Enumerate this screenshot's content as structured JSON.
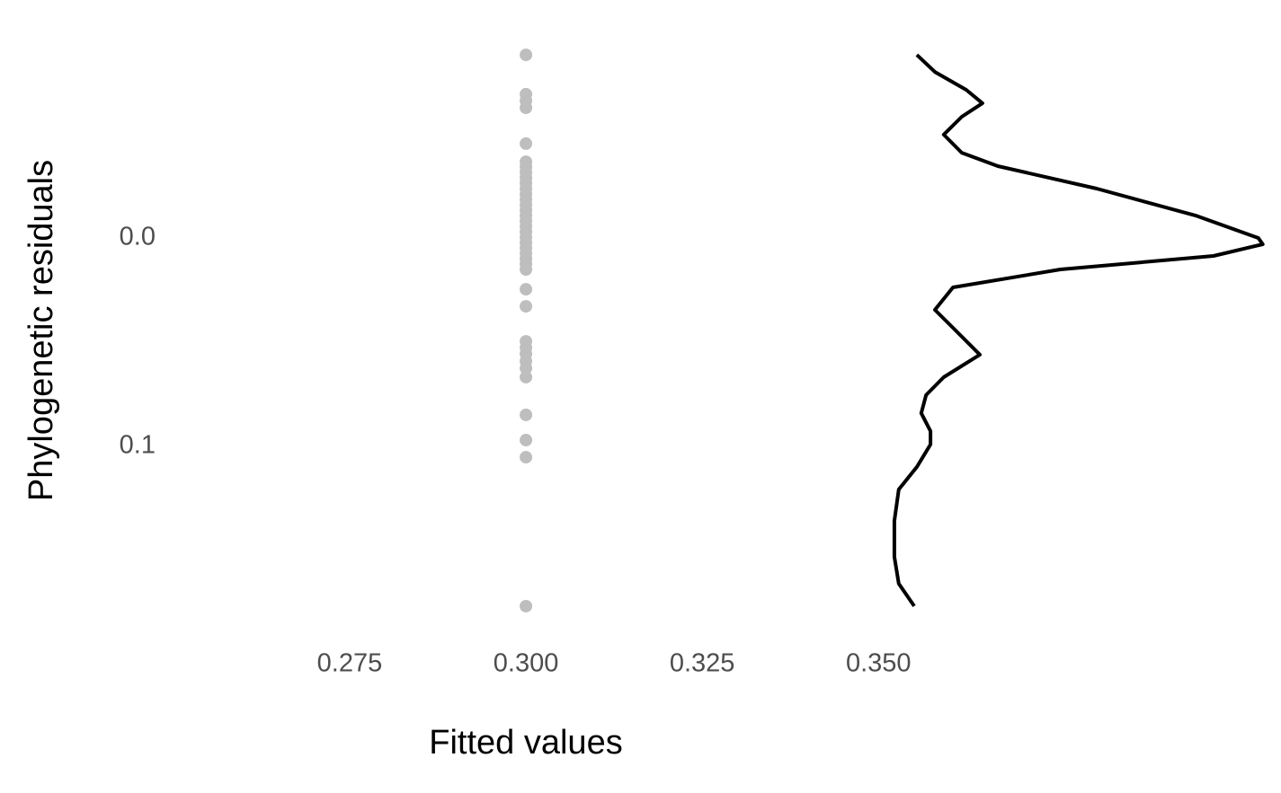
{
  "chart_data": {
    "type": "scatter",
    "x_label": "Fitted values",
    "y_label": "Phylogenetic residuals",
    "color": "#bebebe",
    "y_reversed": true,
    "grid": false,
    "xlim": [
      0.262,
      0.358
    ],
    "ylim": [
      -0.095,
      0.185
    ],
    "xticks": [
      0.275,
      {
        "value": 0.3,
        "label": "0.300"
      },
      0.325,
      {
        "value": 0.35,
        "label": "0.350"
      }
    ],
    "yticks": [
      {
        "value": 0,
        "label": "0.0"
      },
      0.1
    ],
    "x": [
      0.3,
      0.3,
      0.3,
      0.3,
      0.3,
      0.3,
      0.3,
      0.3,
      0.3,
      0.3,
      0.3,
      0.3,
      0.3,
      0.3,
      0.3,
      0.3,
      0.3,
      0.3,
      0.3,
      0.3,
      0.3,
      0.3,
      0.3,
      0.3,
      0.3,
      0.3,
      0.3,
      0.3,
      0.3,
      0.3,
      0.3,
      0.3,
      0.3,
      0.3,
      0.3,
      0.3,
      0.3,
      0.3
    ],
    "y": [
      -0.0879,
      -0.069,
      -0.0659,
      -0.0625,
      -0.0453,
      -0.0366,
      -0.0341,
      -0.0315,
      -0.0289,
      -0.0263,
      -0.0237,
      -0.0211,
      -0.0185,
      -0.0159,
      -0.0134,
      -0.0108,
      -0.0082,
      -0.0056,
      -0.003,
      -0.0004,
      0.0022,
      0.0047,
      0.0073,
      0.0099,
      0.0125,
      0.0151,
      0.0246,
      0.0328,
      0.0496,
      0.0526,
      0.0556,
      0.0591,
      0.0625,
      0.0668,
      0.0849,
      0.097,
      0.1052,
      0.1767
    ],
    "density": {
      "color": "#000000",
      "xlim": [
        0,
        10.2
      ],
      "y": [
        -0.0879,
        -0.0797,
        -0.0711,
        -0.0647,
        -0.0582,
        -0.0496,
        -0.0409,
        -0.0345,
        -0.0237,
        -0.0108,
        0,
        0.003,
        0.0086,
        0.0151,
        0.0237,
        0.0345,
        0.0431,
        0.056,
        0.0668,
        0.0754,
        0.0841,
        0.0927,
        0.0991,
        0.1099,
        0.1207,
        0.1358,
        0.153,
        0.1659,
        0.1767
      ],
      "values": [
        0.73,
        1.22,
        2.07,
        2.51,
        1.95,
        1.46,
        1.95,
        2.93,
        5.61,
        8.29,
        10.0,
        10.12,
        8.78,
        4.63,
        1.71,
        1.22,
        1.71,
        2.44,
        1.46,
        0.98,
        0.85,
        1.1,
        1.1,
        0.73,
        0.24,
        0.12,
        0.12,
        0.24,
        0.66
      ]
    }
  }
}
